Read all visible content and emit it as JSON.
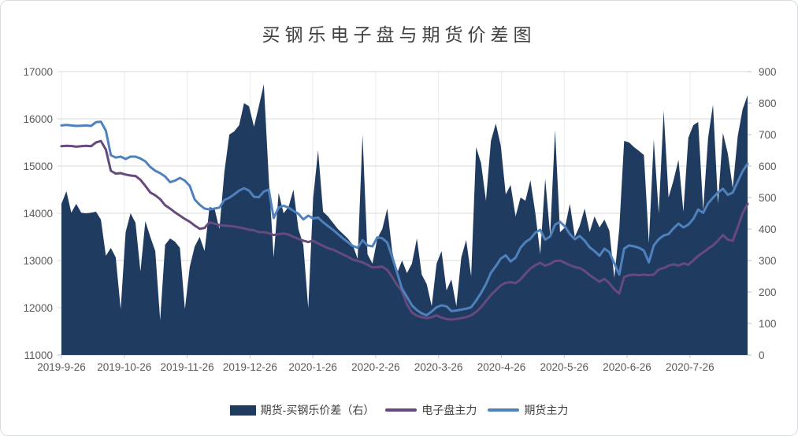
{
  "title": "买钢乐电子盘与期货价差图",
  "colors": {
    "area": "#1f3b60",
    "electronic_line": "#664a7e",
    "futures_line": "#4f81bd",
    "gridline": "#d9d9d9",
    "vertical_gridline": "#e9ebef",
    "axis_line": "#bfbfbf",
    "axis_text": "#595959",
    "title_text": "#404040"
  },
  "legend": {
    "spread_label": "期货-买钢乐价差（右）",
    "electronic_label": "电子盘主力",
    "futures_label": "期货主力"
  },
  "chart_data": {
    "type": "combo",
    "title": "买钢乐电子盘与期货价差图",
    "legend_position": "bottom",
    "grid": "horizontal solid light + faint vertical at month ticks",
    "left_axis": {
      "min": 11000,
      "max": 17000,
      "step": 1000,
      "tick_labels": [
        "17000",
        "16000",
        "15000",
        "14000",
        "13000",
        "12000",
        "11000"
      ]
    },
    "right_axis": {
      "min": 0,
      "max": 900,
      "step": 100,
      "tick_labels": [
        "900",
        "800",
        "700",
        "600",
        "500",
        "400",
        "300",
        "200",
        "100",
        "0"
      ]
    },
    "x_ticks": {
      "labels": [
        "2019-9-26",
        "2019-10-26",
        "2019-11-26",
        "2019-12-26",
        "2020-1-26",
        "2020-2-26",
        "2020-3-26",
        "2020-4-26",
        "2020-5-26",
        "2020-6-26",
        "2020-7-26"
      ],
      "fracs": [
        0,
        0.0916,
        0.1832,
        0.2748,
        0.3664,
        0.458,
        0.5496,
        0.6412,
        0.7328,
        0.8244,
        0.916
      ]
    },
    "series": [
      {
        "name": "期货-买钢乐价差（右）",
        "type": "area",
        "axis": "right",
        "values": [
          480,
          520,
          452,
          480,
          452,
          450,
          452,
          455,
          430,
          315,
          340,
          310,
          145,
          390,
          450,
          420,
          265,
          425,
          375,
          330,
          110,
          350,
          370,
          360,
          340,
          145,
          280,
          345,
          375,
          330,
          470,
          465,
          400,
          580,
          700,
          710,
          730,
          800,
          790,
          725,
          790,
          860,
          560,
          310,
          515,
          450,
          470,
          525,
          400,
          350,
          148,
          500,
          650,
          455,
          440,
          420,
          400,
          385,
          370,
          350,
          305,
          700,
          320,
          290,
          370,
          400,
          465,
          330,
          260,
          300,
          260,
          290,
          370,
          255,
          225,
          155,
          290,
          330,
          205,
          240,
          155,
          310,
          365,
          250,
          660,
          610,
          490,
          680,
          735,
          665,
          510,
          540,
          440,
          500,
          490,
          555,
          450,
          320,
          560,
          380,
          715,
          390,
          405,
          480,
          375,
          410,
          465,
          390,
          440,
          405,
          430,
          395,
          245,
          400,
          680,
          675,
          660,
          648,
          635,
          355,
          685,
          450,
          775,
          500,
          555,
          620,
          455,
          690,
          730,
          740,
          460,
          690,
          795,
          480,
          705,
          640,
          530,
          695,
          780,
          825
        ]
      },
      {
        "name": "电子盘主力",
        "type": "line",
        "axis": "left",
        "values": [
          15420,
          15430,
          15425,
          15410,
          15420,
          15430,
          15420,
          15500,
          15530,
          15350,
          14900,
          14840,
          14850,
          14820,
          14800,
          14790,
          14710,
          14580,
          14440,
          14380,
          14300,
          14170,
          14100,
          14020,
          13950,
          13880,
          13820,
          13740,
          13670,
          13690,
          13810,
          13780,
          13750,
          13740,
          13730,
          13720,
          13700,
          13680,
          13650,
          13640,
          13600,
          13600,
          13580,
          13540,
          13560,
          13570,
          13550,
          13500,
          13460,
          13420,
          13390,
          13420,
          13360,
          13310,
          13260,
          13230,
          13180,
          13130,
          13080,
          13020,
          12990,
          12960,
          12910,
          12850,
          12860,
          12870,
          12800,
          12650,
          12480,
          12350,
          12070,
          11900,
          11830,
          11800,
          11780,
          11800,
          11840,
          11790,
          11760,
          11750,
          11760,
          11780,
          11800,
          11840,
          11910,
          12010,
          12140,
          12270,
          12370,
          12470,
          12530,
          12540,
          12520,
          12600,
          12720,
          12830,
          12900,
          12950,
          12890,
          12930,
          12990,
          13000,
          12950,
          12900,
          12860,
          12840,
          12780,
          12690,
          12620,
          12550,
          12610,
          12520,
          12390,
          12300,
          12650,
          12690,
          12700,
          12690,
          12700,
          12690,
          12700,
          12810,
          12840,
          12890,
          12920,
          12890,
          12940,
          12910,
          13000,
          13100,
          13170,
          13250,
          13320,
          13420,
          13540,
          13440,
          13420,
          13700,
          14000,
          14200
        ]
      },
      {
        "name": "期货主力",
        "type": "line",
        "axis": "left",
        "values": [
          15860,
          15870,
          15860,
          15850,
          15855,
          15860,
          15850,
          15930,
          15940,
          15750,
          15230,
          15180,
          15200,
          15150,
          15200,
          15200,
          15160,
          15100,
          14980,
          14900,
          14850,
          14780,
          14660,
          14690,
          14750,
          14690,
          14580,
          14290,
          14180,
          14100,
          14080,
          14100,
          14120,
          14280,
          14330,
          14400,
          14480,
          14530,
          14480,
          14350,
          14340,
          14460,
          14500,
          13900,
          14120,
          14160,
          14120,
          14050,
          13990,
          13870,
          13950,
          13890,
          13910,
          13810,
          13730,
          13650,
          13560,
          13470,
          13390,
          13310,
          13270,
          13430,
          13320,
          13300,
          13490,
          13470,
          13380,
          13080,
          12740,
          12400,
          12230,
          12050,
          11950,
          11880,
          11840,
          11920,
          12010,
          12050,
          12030,
          11930,
          11940,
          11960,
          11980,
          12010,
          12150,
          12310,
          12500,
          12740,
          12880,
          13040,
          13110,
          12980,
          13060,
          13270,
          13390,
          13460,
          13590,
          13650,
          13440,
          13510,
          13760,
          13820,
          13720,
          13560,
          13450,
          13520,
          13420,
          13280,
          13200,
          13100,
          13250,
          13180,
          12940,
          12700,
          13250,
          13320,
          13300,
          13270,
          13210,
          12960,
          13320,
          13450,
          13530,
          13560,
          13680,
          13780,
          13700,
          13760,
          13880,
          14080,
          14010,
          14210,
          14330,
          14440,
          14520,
          14390,
          14440,
          14670,
          14890,
          15050
        ]
      }
    ]
  }
}
